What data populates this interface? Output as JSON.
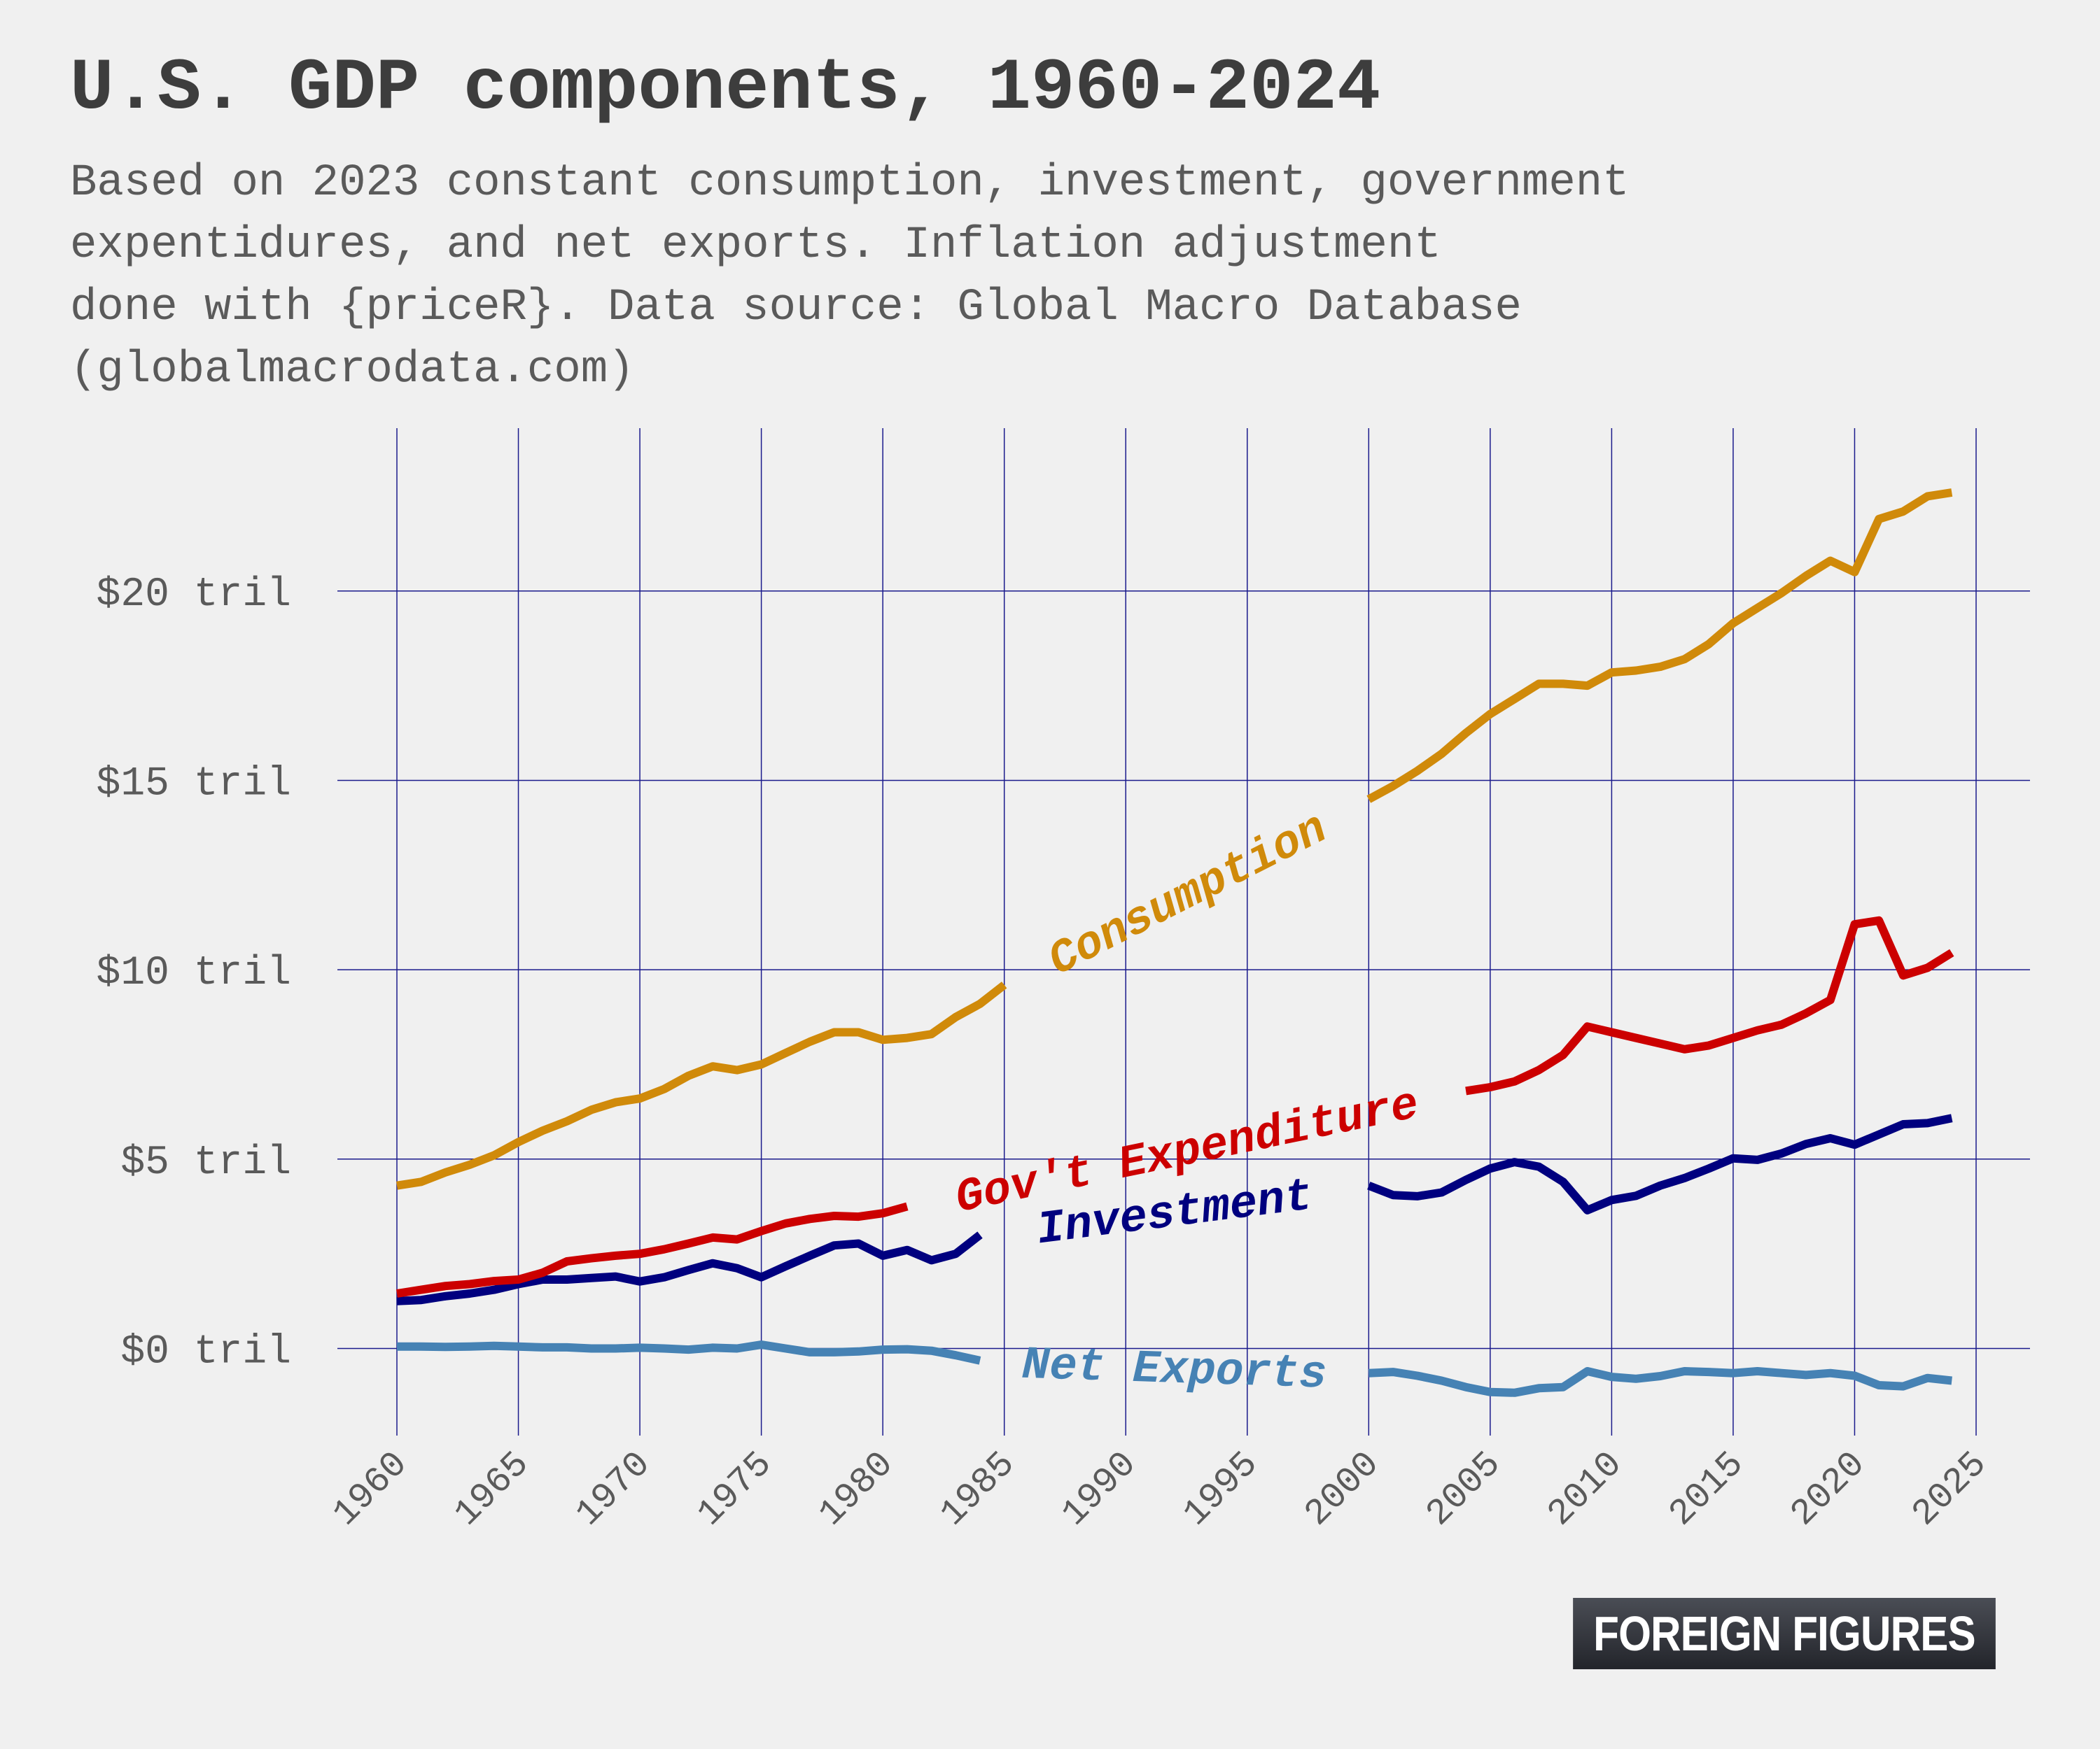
{
  "title": "U.S. GDP components, 1960-2024",
  "subtitle_lines": [
    "Based on 2023 constant consumption, investment, government",
    "expentidures, and net exports. Inflation adjustment",
    "done with {priceR}. Data source: Global Macro Database",
    "(globalmacrodata.com)"
  ],
  "logo_text": "FOREIGN FIGURES",
  "chart_data": {
    "type": "line",
    "title": "U.S. GDP components, 1960-2024",
    "xlabel": "",
    "ylabel": "",
    "xlim": [
      1960,
      2025
    ],
    "ylim": [
      -2.3,
      24.3
    ],
    "y_ticks": [
      0,
      5,
      10,
      15,
      20
    ],
    "y_tick_labels": [
      "$0 tril",
      "$5 tril",
      "$10 tril",
      "$15 tril",
      "$20 tril"
    ],
    "x_ticks": [
      1960,
      1965,
      1970,
      1975,
      1980,
      1985,
      1990,
      1995,
      2000,
      2005,
      2010,
      2015,
      2020,
      2025
    ],
    "x_tick_labels": [
      "1960",
      "1965",
      "1970",
      "1975",
      "1980",
      "1985",
      "1990",
      "1995",
      "2000",
      "2005",
      "2010",
      "2015",
      "2020",
      "2025"
    ],
    "grid": true,
    "legend": "inline labels",
    "series": [
      {
        "name": "Consumption",
        "color": "#d08a0a",
        "label_at": 1986,
        "segments": [
          {
            "x": [
              1960,
              1961,
              1962,
              1963,
              1964,
              1965,
              1966,
              1967,
              1968,
              1969,
              1970,
              1971,
              1972,
              1973,
              1974,
              1975,
              1976,
              1977,
              1978,
              1979,
              1980,
              1981,
              1982,
              1983,
              1984,
              1985
            ],
            "y": [
              4.3,
              4.4,
              4.65,
              4.85,
              5.1,
              5.45,
              5.75,
              6.0,
              6.3,
              6.5,
              6.6,
              6.85,
              7.2,
              7.45,
              7.35,
              7.5,
              7.8,
              8.1,
              8.35,
              8.35,
              8.15,
              8.2,
              8.3,
              8.75,
              9.1,
              9.6
            ]
          },
          {
            "x": [
              2000,
              2001,
              2002,
              2003,
              2004,
              2005,
              2006,
              2007,
              2008,
              2009,
              2010,
              2011,
              2012,
              2013,
              2014,
              2015,
              2016,
              2017,
              2018,
              2019,
              2020,
              2021,
              2022,
              2023,
              2024
            ],
            "y": [
              14.5,
              14.85,
              15.25,
              15.7,
              16.25,
              16.75,
              17.15,
              17.55,
              17.55,
              17.5,
              17.85,
              17.9,
              18.0,
              18.2,
              18.6,
              19.15,
              19.55,
              19.95,
              20.4,
              20.8,
              20.5,
              21.9,
              22.1,
              22.5,
              22.6
            ]
          }
        ]
      },
      {
        "name": "Gov't Expenditure",
        "color": "#cc0000",
        "label_at": 1990,
        "segments": [
          {
            "x": [
              1960,
              1961,
              1962,
              1963,
              1964,
              1965,
              1966,
              1967,
              1968,
              1969,
              1970,
              1971,
              1972,
              1973,
              1974,
              1975,
              1976,
              1977,
              1978,
              1979,
              1980,
              1981
            ],
            "y": [
              1.45,
              1.55,
              1.65,
              1.7,
              1.78,
              1.82,
              2.0,
              2.3,
              2.38,
              2.45,
              2.5,
              2.62,
              2.77,
              2.93,
              2.88,
              3.1,
              3.3,
              3.42,
              3.5,
              3.48,
              3.57,
              3.75
            ]
          },
          {
            "x": [
              2004,
              2005,
              2006,
              2007,
              2008,
              2009,
              2010,
              2011,
              2012,
              2013,
              2014,
              2015,
              2016,
              2017,
              2018,
              2019,
              2020,
              2021,
              2022,
              2023,
              2024
            ],
            "y": [
              6.8,
              6.9,
              7.05,
              7.35,
              7.75,
              8.5,
              8.35,
              8.2,
              8.05,
              7.9,
              8.0,
              8.2,
              8.4,
              8.55,
              8.85,
              9.2,
              11.2,
              11.3,
              9.85,
              10.05,
              10.45
            ]
          }
        ]
      },
      {
        "name": "Investment",
        "color": "#00007f",
        "label_at": 1991,
        "segments": [
          {
            "x": [
              1960,
              1961,
              1962,
              1963,
              1964,
              1965,
              1966,
              1967,
              1968,
              1969,
              1970,
              1971,
              1972,
              1973,
              1974,
              1975,
              1976,
              1977,
              1978,
              1979,
              1980,
              1981,
              1982,
              1983,
              1984
            ],
            "y": [
              1.25,
              1.28,
              1.38,
              1.45,
              1.55,
              1.7,
              1.82,
              1.82,
              1.86,
              1.9,
              1.77,
              1.88,
              2.07,
              2.25,
              2.12,
              1.88,
              2.17,
              2.45,
              2.72,
              2.77,
              2.45,
              2.6,
              2.33,
              2.5,
              3.0
            ]
          },
          {
            "x": [
              2000,
              2001,
              2002,
              2003,
              2004,
              2005,
              2006,
              2007,
              2008,
              2009,
              2010,
              2011,
              2012,
              2013,
              2014,
              2015,
              2016,
              2017,
              2018,
              2019,
              2020,
              2021,
              2022,
              2023,
              2024
            ],
            "y": [
              4.3,
              4.05,
              4.02,
              4.12,
              4.45,
              4.75,
              4.92,
              4.8,
              4.4,
              3.65,
              3.92,
              4.03,
              4.3,
              4.5,
              4.75,
              5.02,
              4.98,
              5.15,
              5.4,
              5.55,
              5.38,
              5.65,
              5.92,
              5.95,
              6.08
            ]
          }
        ]
      },
      {
        "name": "Net Exports",
        "color": "#4682b4",
        "label_at": 1991.5,
        "segments": [
          {
            "x": [
              1960,
              1961,
              1962,
              1963,
              1964,
              1965,
              1966,
              1967,
              1968,
              1969,
              1970,
              1971,
              1972,
              1973,
              1974,
              1975,
              1976,
              1977,
              1978,
              1979,
              1980,
              1981,
              1982,
              1983,
              1984
            ],
            "y": [
              0.05,
              0.05,
              0.04,
              0.05,
              0.07,
              0.05,
              0.03,
              0.03,
              0.0,
              0.0,
              0.02,
              0.0,
              -0.03,
              0.02,
              0.0,
              0.1,
              0.0,
              -0.1,
              -0.1,
              -0.08,
              -0.03,
              -0.02,
              -0.06,
              -0.18,
              -0.32
            ]
          },
          {
            "x": [
              2000,
              2001,
              2002,
              2003,
              2004,
              2005,
              2006,
              2007,
              2008,
              2009,
              2010,
              2011,
              2012,
              2013,
              2014,
              2015,
              2016,
              2017,
              2018,
              2019,
              2020,
              2021,
              2022,
              2023,
              2024
            ],
            "y": [
              -0.65,
              -0.62,
              -0.72,
              -0.85,
              -1.02,
              -1.15,
              -1.17,
              -1.05,
              -1.02,
              -0.6,
              -0.75,
              -0.8,
              -0.73,
              -0.6,
              -0.62,
              -0.65,
              -0.6,
              -0.65,
              -0.7,
              -0.65,
              -0.72,
              -0.97,
              -1.0,
              -0.78,
              -0.85
            ]
          }
        ]
      }
    ]
  }
}
